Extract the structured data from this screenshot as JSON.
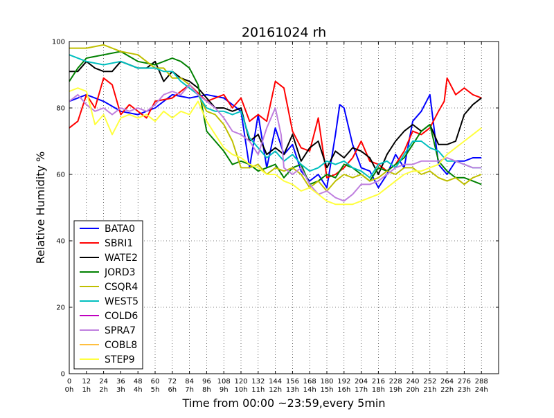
{
  "chart_data": {
    "type": "line",
    "title": "20161024 rh",
    "xlabel": "Time from 00:00 ~23:59,every 5min",
    "ylabel": "Relative Humidity %",
    "xlim": [
      0,
      300
    ],
    "ylim": [
      0,
      100
    ],
    "grid": true,
    "legend_position": "lower-left",
    "x_ticks": [
      0,
      12,
      24,
      36,
      48,
      60,
      72,
      84,
      96,
      108,
      120,
      132,
      144,
      156,
      168,
      180,
      192,
      204,
      216,
      228,
      240,
      252,
      264,
      276,
      288
    ],
    "x_tick_labels": [
      "0",
      "12",
      "24",
      "36",
      "48",
      "60",
      "72",
      "84",
      "96",
      "108",
      "120",
      "132",
      "144",
      "156",
      "168",
      "180",
      "192",
      "204",
      "216",
      "228",
      "240",
      "252",
      "264",
      "276",
      "288"
    ],
    "x_tick_hours": [
      "0h",
      "1h",
      "2h",
      "3h",
      "4h",
      "5h",
      "6h",
      "7h",
      "8h",
      "9h",
      "10h",
      "11h",
      "12h",
      "13h",
      "14h",
      "15h",
      "16h",
      "17h",
      "18h",
      "19h",
      "20h",
      "21h",
      "22h",
      "23h",
      "24h"
    ],
    "y_ticks": [
      0,
      20,
      40,
      60,
      80,
      100
    ],
    "y_tick_labels": [
      "0",
      "20",
      "40",
      "60",
      "80",
      "100"
    ],
    "series": [
      {
        "name": "BATA0",
        "color": "#0000ff",
        "x": [
          0,
          12,
          24,
          36,
          48,
          60,
          72,
          84,
          96,
          108,
          120,
          126,
          132,
          138,
          144,
          150,
          156,
          162,
          168,
          174,
          180,
          186,
          189,
          192,
          198,
          204,
          210,
          216,
          222,
          228,
          234,
          240,
          246,
          252,
          258,
          264,
          270,
          276,
          282,
          288
        ],
        "values": [
          82,
          84,
          82,
          79,
          78,
          80,
          84,
          83,
          84,
          83,
          79,
          62,
          78,
          62,
          74,
          66,
          69,
          61,
          58,
          60,
          56,
          72,
          81,
          80,
          69,
          62,
          61,
          56,
          60,
          66,
          62,
          76,
          79,
          84,
          63,
          60,
          64,
          64,
          65,
          65
        ]
      },
      {
        "name": "SBRI1",
        "color": "#ff0000",
        "x": [
          0,
          6,
          12,
          18,
          24,
          30,
          36,
          42,
          48,
          54,
          60,
          72,
          84,
          96,
          108,
          114,
          120,
          126,
          132,
          138,
          144,
          150,
          156,
          162,
          168,
          174,
          180,
          186,
          192,
          198,
          204,
          210,
          216,
          222,
          228,
          234,
          240,
          246,
          252,
          258,
          262,
          264,
          270,
          276,
          282,
          288
        ],
        "values": [
          74,
          76,
          84,
          80,
          89,
          87,
          78,
          81,
          79,
          77,
          82,
          83,
          87,
          82,
          84,
          80,
          83,
          76,
          78,
          76,
          88,
          86,
          73,
          68,
          67,
          77,
          59,
          60,
          62,
          65,
          70,
          64,
          63,
          61,
          63,
          67,
          73,
          72,
          74,
          79,
          82,
          89,
          84,
          86,
          84,
          83
        ]
      },
      {
        "name": "WATE2",
        "color": "#000000",
        "x": [
          0,
          6,
          12,
          18,
          24,
          30,
          36,
          42,
          48,
          54,
          60,
          66,
          72,
          78,
          84,
          90,
          96,
          102,
          108,
          114,
          120,
          126,
          132,
          138,
          144,
          150,
          156,
          162,
          168,
          174,
          180,
          186,
          192,
          198,
          204,
          210,
          216,
          222,
          228,
          234,
          240,
          246,
          252,
          258,
          264,
          270,
          276,
          282,
          288
        ],
        "values": [
          91,
          91,
          94,
          92,
          91,
          91,
          94,
          93,
          92,
          92,
          94,
          88,
          91,
          89,
          88,
          86,
          83,
          80,
          80,
          79,
          80,
          70,
          72,
          66,
          68,
          66,
          72,
          64,
          68,
          70,
          62,
          67,
          65,
          68,
          67,
          65,
          60,
          66,
          70,
          73,
          75,
          73,
          75,
          69,
          69,
          70,
          78,
          81,
          83
        ]
      },
      {
        "name": "JORD3",
        "color": "#008000",
        "x": [
          0,
          6,
          12,
          24,
          36,
          48,
          60,
          72,
          78,
          84,
          90,
          96,
          102,
          108,
          114,
          120,
          126,
          132,
          138,
          144,
          150,
          156,
          162,
          168,
          174,
          180,
          186,
          192,
          198,
          204,
          210,
          216,
          222,
          228,
          234,
          240,
          246,
          252,
          258,
          264,
          270,
          276,
          282,
          288
        ],
        "values": [
          88,
          92,
          95,
          96,
          97,
          94,
          93,
          95,
          94,
          92,
          87,
          73,
          70,
          67,
          63,
          64,
          63,
          61,
          62,
          63,
          59,
          62,
          63,
          57,
          58,
          60,
          59,
          63,
          62,
          60,
          58,
          62,
          61,
          63,
          65,
          69,
          73,
          75,
          64,
          61,
          59,
          59,
          58,
          57
        ]
      },
      {
        "name": "CSQR4",
        "color": "#bfbf00",
        "x": [
          0,
          12,
          24,
          36,
          48,
          60,
          66,
          72,
          78,
          84,
          90,
          96,
          102,
          108,
          114,
          120,
          126,
          132,
          138,
          144,
          150,
          156,
          162,
          168,
          174,
          180,
          186,
          192,
          198,
          204,
          210,
          216,
          222,
          228,
          234,
          240,
          246,
          252,
          258,
          264,
          270,
          276,
          282,
          288
        ],
        "values": [
          98,
          98,
          99,
          97,
          96,
          92,
          92,
          89,
          89,
          87,
          84,
          79,
          78,
          75,
          70,
          62,
          62,
          63,
          60,
          62,
          61,
          62,
          60,
          56,
          58,
          55,
          58,
          60,
          59,
          60,
          58,
          59,
          61,
          60,
          62,
          62,
          60,
          61,
          59,
          58,
          59,
          57,
          59,
          60
        ]
      },
      {
        "name": "WEST5",
        "color": "#00bfbf",
        "x": [
          0,
          12,
          24,
          36,
          48,
          60,
          66,
          72,
          78,
          84,
          90,
          96,
          102,
          108,
          114,
          120,
          126,
          132,
          138,
          144,
          150,
          156,
          162,
          168,
          174,
          180,
          186,
          192,
          198,
          204,
          210,
          216,
          222,
          228,
          234,
          240,
          246,
          252,
          258,
          264,
          270,
          276,
          282,
          288
        ],
        "values": [
          96,
          94,
          93,
          94,
          92,
          92,
          91,
          91,
          88,
          86,
          84,
          80,
          79,
          79,
          78,
          79,
          71,
          68,
          65,
          67,
          64,
          66,
          63,
          61,
          62,
          64,
          63,
          64,
          62,
          61,
          59,
          63,
          64,
          62,
          66,
          70,
          70,
          68,
          67,
          64,
          64,
          63,
          62,
          62
        ]
      },
      {
        "name": "COLD6",
        "color": "#bf00bf",
        "x": [],
        "values": []
      },
      {
        "name": "SPRA7",
        "color": "#bf7fdf",
        "x": [
          0,
          6,
          12,
          18,
          24,
          30,
          36,
          42,
          48,
          54,
          60,
          66,
          72,
          78,
          84,
          90,
          96,
          102,
          108,
          114,
          120,
          126,
          132,
          138,
          144,
          148,
          150,
          156,
          162,
          168,
          174,
          180,
          186,
          192,
          198,
          204,
          210,
          216,
          222,
          228,
          234,
          240,
          246,
          252,
          258,
          264,
          270,
          276,
          282,
          288
        ],
        "values": [
          82,
          84,
          81,
          79,
          80,
          78,
          80,
          79,
          80,
          79,
          81,
          84,
          85,
          84,
          87,
          84,
          82,
          80,
          77,
          73,
          72,
          70,
          66,
          74,
          80,
          72,
          62,
          60,
          62,
          57,
          54,
          55,
          53,
          52,
          54,
          57,
          57,
          58,
          60,
          62,
          63,
          63,
          64,
          64,
          64,
          65,
          64,
          63,
          62,
          62
        ]
      },
      {
        "name": "COBL8",
        "color": "#ffbf3f",
        "x": [],
        "values": []
      },
      {
        "name": "STEP9",
        "color": "#ffff3f",
        "x": [
          0,
          6,
          12,
          18,
          24,
          30,
          36,
          42,
          48,
          54,
          60,
          66,
          72,
          78,
          84,
          90,
          96,
          102,
          108,
          114,
          120,
          126,
          132,
          138,
          144,
          150,
          156,
          162,
          168,
          174,
          180,
          186,
          192,
          198,
          204,
          210,
          216,
          222,
          228,
          234,
          240,
          246,
          252,
          258,
          264,
          270,
          276,
          282,
          288
        ],
        "values": [
          85,
          86,
          85,
          75,
          78,
          72,
          77,
          78,
          77,
          78,
          76,
          79,
          77,
          79,
          78,
          82,
          76,
          72,
          68,
          66,
          65,
          63,
          62,
          60,
          60,
          58,
          57,
          55,
          56,
          54,
          52,
          51,
          51,
          51,
          52,
          53,
          54,
          56,
          58,
          60,
          61,
          61,
          62,
          63,
          66,
          68,
          70,
          72,
          74
        ]
      }
    ]
  }
}
